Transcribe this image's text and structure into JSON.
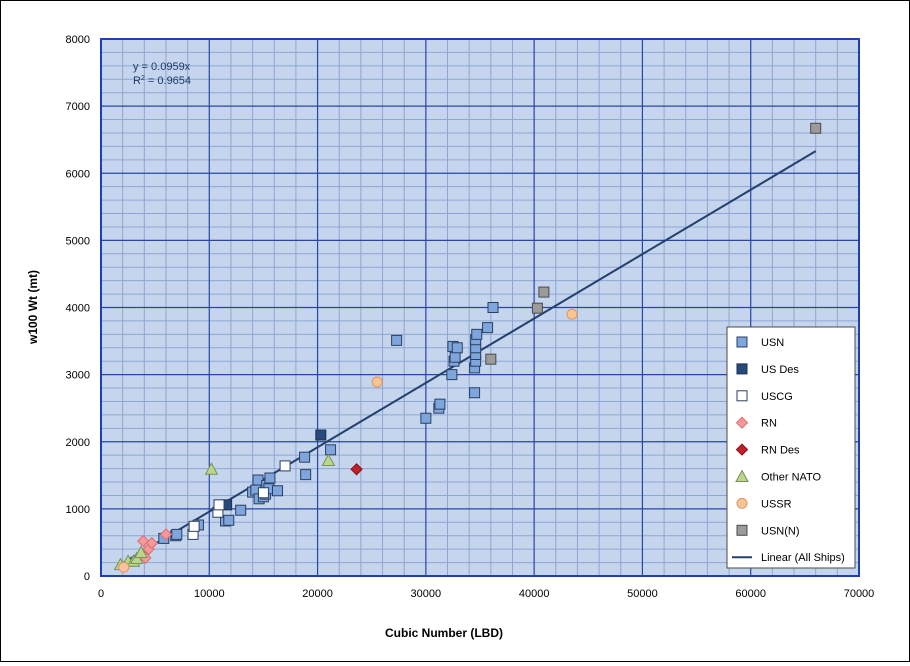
{
  "chart_data": {
    "type": "scatter",
    "title": "",
    "xlabel": "Cubic Number (LBD)",
    "ylabel": "w100 Wt (mt)",
    "xlim": [
      0,
      70000
    ],
    "ylim": [
      0,
      8000
    ],
    "x_ticks": [
      "0",
      "10000",
      "20000",
      "30000",
      "40000",
      "50000",
      "60000",
      "70000"
    ],
    "y_ticks": [
      "0",
      "1000",
      "2000",
      "3000",
      "4000",
      "5000",
      "6000",
      "7000",
      "8000"
    ],
    "grid": true,
    "legend_position": "right",
    "annotation": {
      "equation": "y = 0.0959x",
      "r2_label": "R",
      "r2_exp": "2",
      "r2_value": " = 0.9654"
    },
    "colors": {
      "plot_bg": "#c5d5ee",
      "major_grid": "#2946a0",
      "minor_grid": "#8ea6d3",
      "trendline": "#24406d",
      "plot_border": "#1f3fb5"
    },
    "series": [
      {
        "name": "USN",
        "marker": "square",
        "fill": "#7ea6dd",
        "stroke": "#2b3f63",
        "points": [
          [
            5800,
            560
          ],
          [
            6900,
            600
          ],
          [
            7000,
            620
          ],
          [
            9000,
            760
          ],
          [
            11500,
            820
          ],
          [
            11800,
            830
          ],
          [
            12900,
            980
          ],
          [
            14000,
            1250
          ],
          [
            14300,
            1280
          ],
          [
            14500,
            1430
          ],
          [
            14600,
            1150
          ],
          [
            15000,
            1180
          ],
          [
            15200,
            1220
          ],
          [
            15300,
            1350
          ],
          [
            15500,
            1300
          ],
          [
            15600,
            1460
          ],
          [
            16300,
            1270
          ],
          [
            18800,
            1770
          ],
          [
            18900,
            1510
          ],
          [
            21200,
            1880
          ],
          [
            27300,
            3510
          ],
          [
            30000,
            2350
          ],
          [
            31200,
            2500
          ],
          [
            31300,
            2560
          ],
          [
            32400,
            3000
          ],
          [
            32500,
            3420
          ],
          [
            32600,
            3200
          ],
          [
            32700,
            3260
          ],
          [
            32900,
            3400
          ],
          [
            34500,
            2730
          ],
          [
            34500,
            3100
          ],
          [
            34600,
            3200
          ],
          [
            34600,
            3300
          ],
          [
            34600,
            3400
          ],
          [
            34600,
            3520
          ],
          [
            34700,
            3600
          ],
          [
            35700,
            3700
          ],
          [
            36200,
            4000
          ]
        ]
      },
      {
        "name": "US Des",
        "marker": "square",
        "fill": "#274a7e",
        "stroke": "#1d2f4d",
        "points": [
          [
            11600,
            1060
          ],
          [
            20300,
            2100
          ]
        ]
      },
      {
        "name": "USCG",
        "marker": "square",
        "fill": "#ffffff",
        "stroke": "#2b3f63",
        "points": [
          [
            8500,
            620
          ],
          [
            8600,
            740
          ],
          [
            10800,
            950
          ],
          [
            10900,
            1060
          ],
          [
            15000,
            1240
          ],
          [
            17000,
            1640
          ]
        ]
      },
      {
        "name": "RN",
        "marker": "diamond",
        "fill": "#f39999",
        "stroke": "#e06b6b",
        "points": [
          [
            3900,
            520
          ],
          [
            4100,
            270
          ],
          [
            4400,
            400
          ],
          [
            4700,
            490
          ],
          [
            6000,
            620
          ]
        ]
      },
      {
        "name": "RN Des",
        "marker": "diamond",
        "fill": "#c0202a",
        "stroke": "#8a1019",
        "points": [
          [
            23600,
            1590
          ]
        ]
      },
      {
        "name": "Other NATO",
        "marker": "triangle",
        "fill": "#bcd58d",
        "stroke": "#77935a",
        "points": [
          [
            1800,
            170
          ],
          [
            2500,
            220
          ],
          [
            3000,
            220
          ],
          [
            3300,
            260
          ],
          [
            3700,
            350
          ],
          [
            10200,
            1590
          ],
          [
            21000,
            1720
          ]
        ]
      },
      {
        "name": "USSR",
        "marker": "circle",
        "fill": "#fbc497",
        "stroke": "#e0945a",
        "points": [
          [
            2100,
            130
          ],
          [
            25500,
            2890
          ],
          [
            43500,
            3900
          ]
        ]
      },
      {
        "name": "USN(N)",
        "marker": "square",
        "fill": "#9b9b9b",
        "stroke": "#4a4a4a",
        "points": [
          [
            36000,
            3230
          ],
          [
            40300,
            3990
          ],
          [
            40900,
            4230
          ],
          [
            66000,
            6670
          ]
        ]
      },
      {
        "name": "Linear (All Ships)",
        "marker": "line",
        "stroke": "#24406d",
        "line": [
          [
            2000,
            191.8
          ],
          [
            66000,
            6329.4
          ]
        ]
      }
    ]
  }
}
